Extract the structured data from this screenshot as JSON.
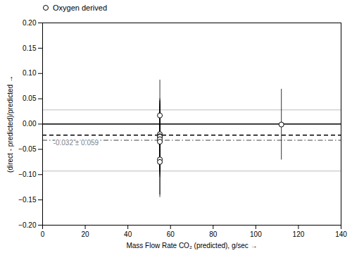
{
  "chart_data": {
    "type": "scatter",
    "xlabel": "Mass Flow Rate CO₂ (predicted), g/sec",
    "ylabel": "(direct - predicted)/predicted",
    "series": [
      {
        "name": "Oxygen derived",
        "color": "black",
        "marker": "circle_open",
        "x": [
          55,
          55,
          55,
          55,
          55,
          55,
          55,
          55,
          112
        ],
        "values": [
          0.017,
          -0.02,
          -0.024,
          -0.025,
          -0.03,
          -0.035,
          -0.07,
          -0.075,
          -0.001
        ],
        "error": [
          0.07,
          0.07,
          0.07,
          0.07,
          0.07,
          0.07,
          0.07,
          0.07,
          0.07
        ]
      }
    ],
    "reference_lines": [
      {
        "value": 0.028,
        "color": "#aaaaaa",
        "line_style": "solid"
      },
      {
        "value": -0.093,
        "color": "#aaaaaa",
        "line_style": "solid"
      },
      {
        "value": 0,
        "color": "black",
        "line_style": "solid"
      },
      {
        "value": -0.022,
        "color": "black",
        "line_style": "dashed"
      },
      {
        "value": -0.032,
        "color": "#808080",
        "line_style": "dashdot"
      }
    ],
    "annotations": [
      {
        "text": "-0.032 ± 0.059",
        "x": 5,
        "y": -0.038,
        "color": "#808080"
      }
    ],
    "xlim": [
      0,
      140
    ],
    "xticks": [
      0,
      20,
      40,
      60,
      80,
      100,
      120,
      140
    ],
    "ylim": [
      -0.2,
      0.2
    ],
    "yticks": [
      {
        "value": -0.2,
        "label": "−0.20"
      },
      {
        "value": -0.15,
        "label": "−0.15"
      },
      {
        "value": -0.1,
        "label": "−0.10"
      },
      {
        "value": -0.05,
        "label": "−0.05"
      },
      {
        "value": 0,
        "label": "0.00"
      },
      {
        "value": 0.05,
        "label": "0.05"
      },
      {
        "value": 0.1,
        "label": "0.10"
      },
      {
        "value": 0.15,
        "label": "0.15"
      },
      {
        "value": 0.2,
        "label": "0.20"
      }
    ],
    "legend": "upper left",
    "grid": false
  }
}
